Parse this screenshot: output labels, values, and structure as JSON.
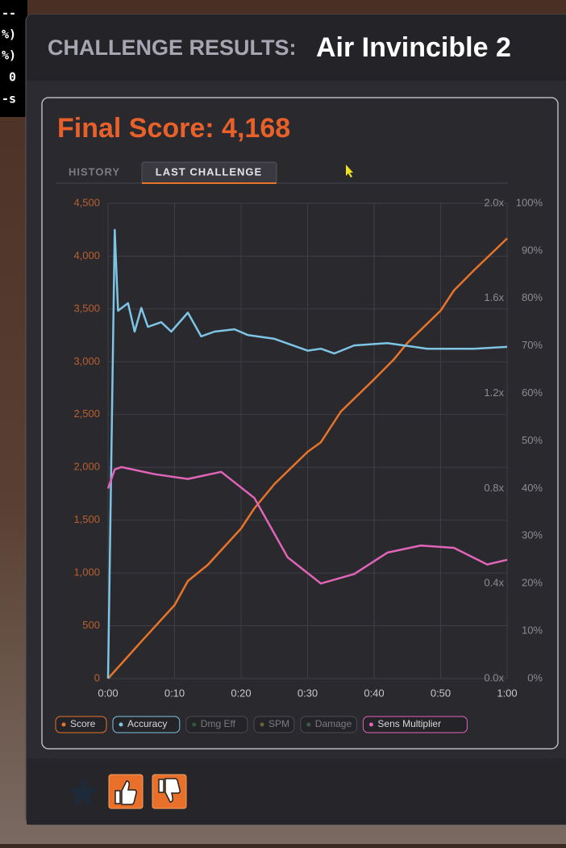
{
  "hud_fragments": [
    "--",
    "%)",
    "%)",
    "0",
    "--s"
  ],
  "header": {
    "label": "CHALLENGE RESULTS:",
    "title": "Air Invincible 2"
  },
  "final_score": "Final Score: 4,168",
  "tabs": [
    "HISTORY",
    "LAST CHALLENGE"
  ],
  "chart_data": {
    "type": "line",
    "xlim": [
      0,
      60
    ],
    "xticks": [
      {
        "value": 0,
        "label": "0:00"
      },
      {
        "value": 10,
        "label": "0:10"
      },
      {
        "value": 20,
        "label": "0:20"
      },
      {
        "value": 30,
        "label": "0:30"
      },
      {
        "value": 40,
        "label": "0:40"
      },
      {
        "value": 50,
        "label": "0:50"
      },
      {
        "value": 60,
        "label": "1:00"
      }
    ],
    "ylim": [
      0,
      4500
    ],
    "yticks": [
      0,
      {
        "value": 500,
        "label": "500"
      },
      {
        "value": 1000,
        "label": "1,000"
      },
      {
        "value": 1500,
        "label": "1,500"
      },
      {
        "value": 2000,
        "label": "2,000"
      },
      {
        "value": 2500,
        "label": "2,500"
      },
      {
        "value": 3000,
        "label": "3,000"
      },
      {
        "value": 3500,
        "label": "3,500"
      },
      {
        "value": 4000,
        "label": "4,000"
      },
      {
        "value": 4500,
        "label": "4,500"
      }
    ],
    "y2lim": [
      0,
      2
    ],
    "y2ticks": [
      {
        "value": 0,
        "label": "0.0x"
      },
      {
        "value": 0.4,
        "label": "0.4x"
      },
      {
        "value": 0.8,
        "label": "0.8x"
      },
      {
        "value": 1.2,
        "label": "1.2x"
      },
      {
        "value": 1.6,
        "label": "1.6x"
      },
      {
        "value": 2,
        "label": "2.0x"
      }
    ],
    "y3lim": [
      0,
      100
    ],
    "y3ticks": [
      {
        "value": 0,
        "label": "0%"
      },
      {
        "value": 10,
        "label": "10%"
      },
      {
        "value": 20,
        "label": "20%"
      },
      {
        "value": 30,
        "label": "30%"
      },
      {
        "value": 40,
        "label": "40%"
      },
      {
        "value": 50,
        "label": "50%"
      },
      {
        "value": 60,
        "label": "60%"
      },
      {
        "value": 70,
        "label": "70%"
      },
      {
        "value": 80,
        "label": "80%"
      },
      {
        "value": 90,
        "label": "90%"
      },
      {
        "value": 100,
        "label": "100%"
      }
    ],
    "grid": true,
    "series": [
      {
        "name": "Score",
        "color": "#e8742a",
        "axis": "y",
        "x": [
          0,
          5,
          10,
          12,
          15,
          20,
          22,
          25,
          30,
          32,
          35,
          40,
          43,
          45,
          50,
          52,
          55,
          60
        ],
        "values": [
          0,
          351,
          695,
          924,
          1077,
          1421,
          1612,
          1841,
          2147,
          2238,
          2529,
          2834,
          3025,
          3178,
          3484,
          3675,
          3866,
          4168
        ]
      },
      {
        "name": "Accuracy",
        "color": "#7ec4e4",
        "axis": "y3",
        "x": [
          0,
          1,
          1.5,
          3,
          4,
          5,
          6,
          8,
          9.5,
          12,
          14,
          16,
          19,
          21,
          25,
          30,
          32,
          34,
          37,
          42,
          48,
          55,
          60
        ],
        "values": [
          0,
          94.4,
          77.4,
          79,
          73,
          78,
          74,
          75,
          73,
          77,
          72,
          73,
          73.5,
          72.3,
          71.5,
          69,
          69.4,
          68.4,
          70.1,
          70.6,
          69.4,
          69.4,
          69.8
        ]
      },
      {
        "name": "Dmg Eff",
        "color": "#2f5a3e",
        "hidden": true
      },
      {
        "name": "SPM",
        "color": "#6a6234",
        "hidden": true
      },
      {
        "name": "Damage",
        "color": "#3a5a48",
        "hidden": true
      },
      {
        "name": "Sens Multiplier",
        "color": "#e064b8",
        "axis": "y2",
        "x": [
          0,
          1,
          2,
          7,
          12,
          17,
          22,
          25,
          27,
          32,
          37,
          42,
          47,
          52,
          57,
          60
        ],
        "values": [
          0.8,
          0.88,
          0.89,
          0.86,
          0.84,
          0.87,
          0.76,
          0.61,
          0.51,
          0.4,
          0.44,
          0.53,
          0.56,
          0.55,
          0.48,
          0.5
        ]
      }
    ]
  }
}
